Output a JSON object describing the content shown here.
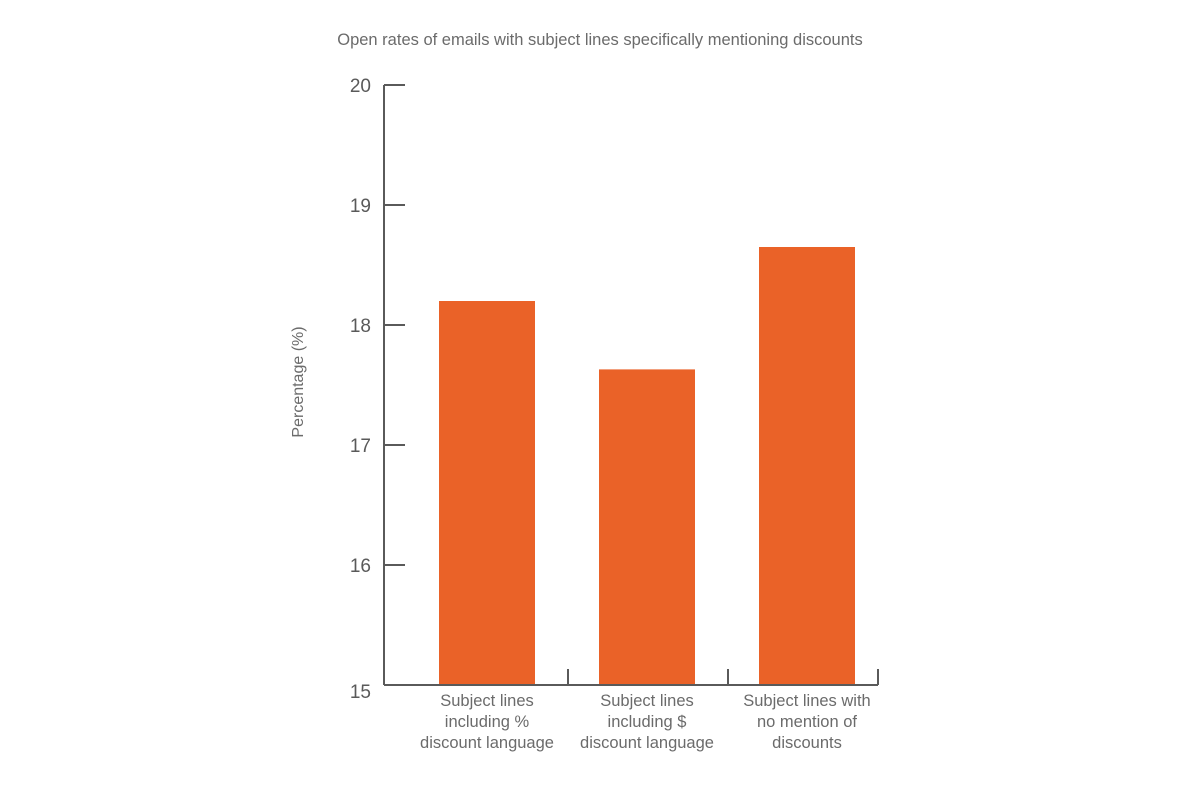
{
  "chart_data": {
    "type": "bar",
    "title": "Open rates of emails with subject lines specifically mentioning discounts",
    "ylabel": "Percentage (%)",
    "xlabel": "",
    "ylim": [
      15,
      20
    ],
    "yticks": [
      "15",
      "16",
      "17",
      "18",
      "19",
      "20"
    ],
    "categories": [
      [
        "Subject lines",
        "including %",
        "discount language"
      ],
      [
        "Subject lines",
        "including $",
        "discount language"
      ],
      [
        "Subject lines with",
        "no mention of",
        "discounts"
      ]
    ],
    "values": [
      18.2,
      17.63,
      18.65
    ],
    "grid": false,
    "legend": "none",
    "bar_color": "#ea6228",
    "axis_color": "#5a5a5a"
  }
}
